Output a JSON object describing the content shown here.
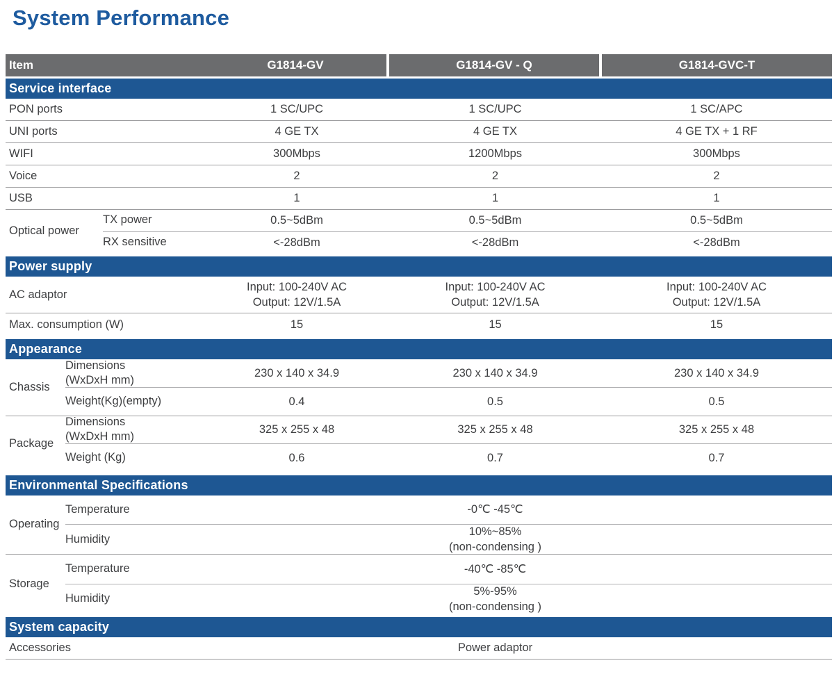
{
  "page_title": "System Performance",
  "colors": {
    "title_blue": "#1e5b9f",
    "section_blue": "#1e5793",
    "header_gray": "#6b6c6e",
    "text": "#3e3f41"
  },
  "table": {
    "header": {
      "item_label": "Item",
      "columns": [
        "G1814-GV",
        "G1814-GV - Q",
        "G1814-GVC-T"
      ]
    },
    "sections": [
      {
        "title": "Service interface",
        "rows": [
          {
            "label": "PON ports",
            "values": [
              "1 SC/UPC",
              "1 SC/UPC",
              "1 SC/APC"
            ]
          },
          {
            "label": "UNI ports",
            "values": [
              "4 GE TX",
              "4 GE TX",
              "4 GE TX + 1 RF"
            ]
          },
          {
            "label": "WIFI",
            "values": [
              "300Mbps",
              "1200Mbps",
              "300Mbps"
            ]
          },
          {
            "label": "Voice",
            "values": [
              "2",
              "2",
              "2"
            ]
          },
          {
            "label": "USB",
            "values": [
              "1",
              "1",
              "1"
            ]
          },
          {
            "group": "Optical power",
            "subrows": [
              {
                "label": "TX power",
                "values": [
                  "0.5~5dBm",
                  "0.5~5dBm",
                  "0.5~5dBm"
                ]
              },
              {
                "label": "RX sensitive",
                "values": [
                  "<-28dBm",
                  "<-28dBm",
                  "<-28dBm"
                ]
              }
            ]
          }
        ]
      },
      {
        "title": "Power supply",
        "rows": [
          {
            "label": "AC adaptor",
            "values": [
              "Input: 100-240V AC\nOutput: 12V/1.5A",
              "Input: 100-240V AC\nOutput: 12V/1.5A",
              "Input: 100-240V AC\nOutput: 12V/1.5A"
            ]
          },
          {
            "label": "Max. consumption (W)",
            "values": [
              "15",
              "15",
              "15"
            ]
          }
        ]
      },
      {
        "title": "Appearance",
        "rows": [
          {
            "group": "Chassis",
            "subrows": [
              {
                "label": "Dimensions\n(WxDxH mm)",
                "values": [
                  "230 x 140 x 34.9",
                  "230 x 140 x 34.9",
                  "230 x 140 x 34.9"
                ]
              },
              {
                "label": "Weight(Kg)(empty)",
                "values": [
                  "0.4",
                  "0.5",
                  "0.5"
                ]
              }
            ]
          },
          {
            "group": "Package",
            "subrows": [
              {
                "label": "Dimensions\n(WxDxH mm)",
                "values": [
                  "325 x 255 x 48",
                  "325 x 255 x 48",
                  "325 x 255 x 48"
                ]
              },
              {
                "label": "Weight (Kg)",
                "values": [
                  "0.6",
                  "0.7",
                  "0.7"
                ]
              }
            ]
          }
        ]
      },
      {
        "title": "Environmental Specifications",
        "rows": [
          {
            "group": "Operating",
            "subrows": [
              {
                "label": "Temperature",
                "span_value": "-0℃ -45℃"
              },
              {
                "label": "Humidity",
                "span_value": "10%~85%\n(non-condensing )"
              }
            ]
          },
          {
            "group": "Storage",
            "subrows": [
              {
                "label": "Temperature",
                "span_value": "-40℃ -85℃"
              },
              {
                "label": "Humidity",
                "span_value": "5%-95%\n(non-condensing )"
              }
            ]
          }
        ]
      },
      {
        "title": "System capacity",
        "rows": [
          {
            "label": "Accessories",
            "span_value": "Power adaptor"
          }
        ]
      }
    ]
  }
}
